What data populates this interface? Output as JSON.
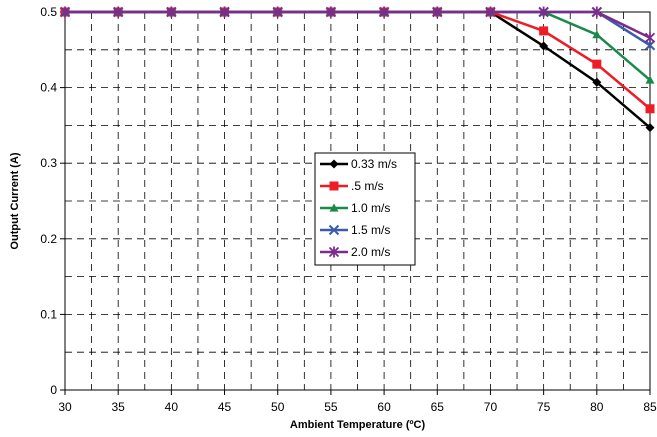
{
  "chart_data": {
    "type": "line",
    "title": "",
    "xlabel": "Ambient Temperature (ºC)",
    "ylabel": "Output Current (A)",
    "x": [
      30,
      35,
      40,
      45,
      50,
      55,
      60,
      65,
      70,
      75,
      80,
      85
    ],
    "xlim": [
      30,
      85
    ],
    "ylim": [
      0,
      0.5
    ],
    "x_ticks": [
      "30",
      "35",
      "40",
      "45",
      "50",
      "55",
      "60",
      "65",
      "70",
      "75",
      "80",
      "85"
    ],
    "y_ticks": [
      "0",
      "0.1",
      "0.2",
      "0.3",
      "0.4",
      "0.5"
    ],
    "grid": true,
    "legend_position": "center",
    "series": [
      {
        "name": "0.33 m/s",
        "color": "#000000",
        "marker": "diamond",
        "values": [
          0.5,
          0.5,
          0.5,
          0.5,
          0.5,
          0.5,
          0.5,
          0.5,
          0.5,
          0.455,
          0.407,
          0.347
        ]
      },
      {
        "name": ".5 m/s",
        "color": "#ee1c25",
        "marker": "square",
        "values": [
          0.5,
          0.5,
          0.5,
          0.5,
          0.5,
          0.5,
          0.5,
          0.5,
          0.5,
          0.475,
          0.431,
          0.372
        ]
      },
      {
        "name": "1.0 m/s",
        "color": "#1a8a4a",
        "marker": "triangle",
        "values": [
          0.5,
          0.5,
          0.5,
          0.5,
          0.5,
          0.5,
          0.5,
          0.5,
          0.5,
          0.5,
          0.47,
          0.41
        ]
      },
      {
        "name": "1.5 m/s",
        "color": "#3b5bab",
        "marker": "x",
        "values": [
          0.5,
          0.5,
          0.5,
          0.5,
          0.5,
          0.5,
          0.5,
          0.5,
          0.5,
          0.5,
          0.5,
          0.456
        ]
      },
      {
        "name": "2.0 m/s",
        "color": "#7b2d8b",
        "marker": "star",
        "values": [
          0.5,
          0.5,
          0.5,
          0.5,
          0.5,
          0.5,
          0.5,
          0.5,
          0.5,
          0.5,
          0.5,
          0.466
        ]
      }
    ]
  }
}
